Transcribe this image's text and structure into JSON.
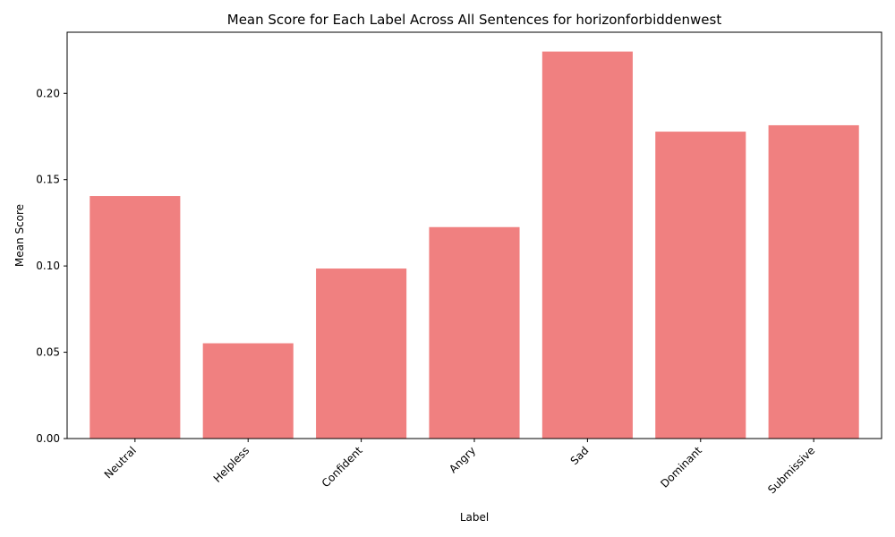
{
  "chart_data": {
    "type": "bar",
    "title": "Mean Score for Each Label Across All Sentences for horizonforbiddenwest",
    "xlabel": "Label",
    "ylabel": "Mean Score",
    "categories": [
      "Neutral",
      "Helpless",
      "Confident",
      "Angry",
      "Sad",
      "Dominant",
      "Submissive"
    ],
    "values": [
      0.1405,
      0.0552,
      0.0985,
      0.1225,
      0.2242,
      0.1778,
      0.1815
    ],
    "ylim": [
      0,
      0.2354
    ],
    "yticks": [
      0.0,
      0.05,
      0.1,
      0.15,
      0.2
    ],
    "ytick_labels": [
      "0.00",
      "0.05",
      "0.10",
      "0.15",
      "0.20"
    ],
    "bar_color": "#f08080",
    "grid": false,
    "legend": "none"
  }
}
